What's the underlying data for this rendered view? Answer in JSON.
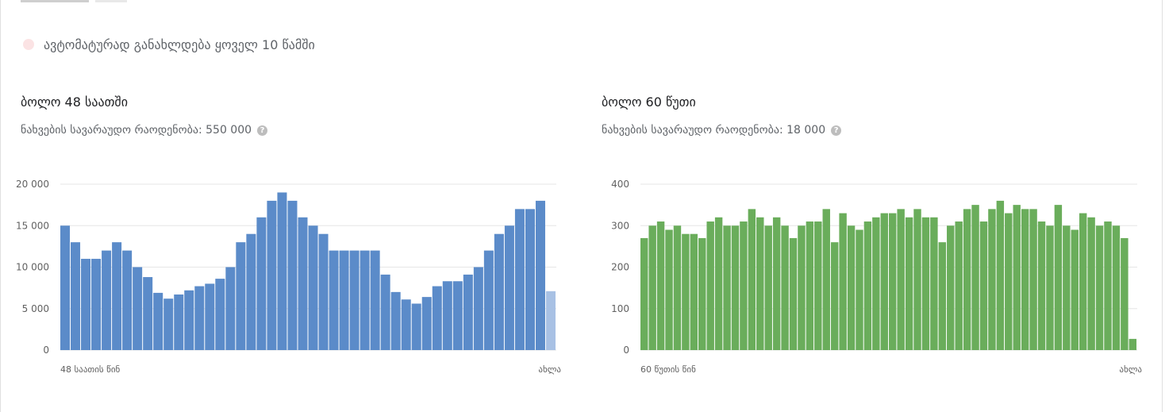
{
  "refresh": {
    "text": "ავტომატურად განახლდება ყოველ 10 წამში"
  },
  "colors": {
    "blue": "#5b8bc9",
    "blue_light": "#a8c1e4",
    "green": "#6aad5b",
    "grid": "#e6e6e6",
    "axis_text": "#616161"
  },
  "chart_data": [
    {
      "type": "bar",
      "title": "ბოლო 48 საათში",
      "subtitle": "ნახვების სავარაუდო რაოდენობა: 550 000",
      "color": "#5b8bc9",
      "partial_color": "#a8c1e4",
      "ylim": [
        0,
        20000
      ],
      "yticks": [
        "20 000",
        "15 000",
        "10 000",
        "5 000",
        "0"
      ],
      "ytick_values": [
        20000,
        15000,
        10000,
        5000,
        0
      ],
      "xlabel_start": "48 საათის წინ",
      "xlabel_end": "ახლა",
      "values": [
        15000,
        13000,
        11000,
        11000,
        12000,
        13000,
        12000,
        10000,
        8800,
        6900,
        6200,
        6700,
        7200,
        7700,
        8000,
        8600,
        10000,
        13000,
        14000,
        16000,
        18000,
        19000,
        18000,
        16000,
        15000,
        14000,
        12000,
        12000,
        12000,
        12000,
        12000,
        9100,
        7000,
        6100,
        5600,
        6400,
        7700,
        8300,
        8300,
        9100,
        10000,
        12000,
        14000,
        15000,
        17000,
        17000,
        18000,
        7100
      ],
      "last_partial": true
    },
    {
      "type": "bar",
      "title": "ბოლო 60 წუთი",
      "subtitle": "ნახვების სავარაუდო რაოდენობა: 18 000",
      "color": "#6aad5b",
      "ylim": [
        0,
        400
      ],
      "yticks": [
        "400",
        "300",
        "200",
        "100",
        "0"
      ],
      "ytick_values": [
        400,
        300,
        200,
        100,
        0
      ],
      "xlabel_start": "60 წუთის წინ",
      "xlabel_end": "ახლა",
      "values": [
        270,
        300,
        310,
        290,
        300,
        280,
        280,
        270,
        310,
        320,
        300,
        300,
        310,
        340,
        320,
        300,
        320,
        300,
        270,
        300,
        310,
        310,
        340,
        260,
        330,
        300,
        290,
        310,
        320,
        330,
        330,
        340,
        320,
        340,
        320,
        320,
        260,
        300,
        310,
        340,
        350,
        310,
        340,
        360,
        330,
        350,
        340,
        340,
        310,
        300,
        350,
        300,
        290,
        330,
        320,
        300,
        310,
        300,
        270,
        27
      ],
      "last_partial": false
    }
  ]
}
